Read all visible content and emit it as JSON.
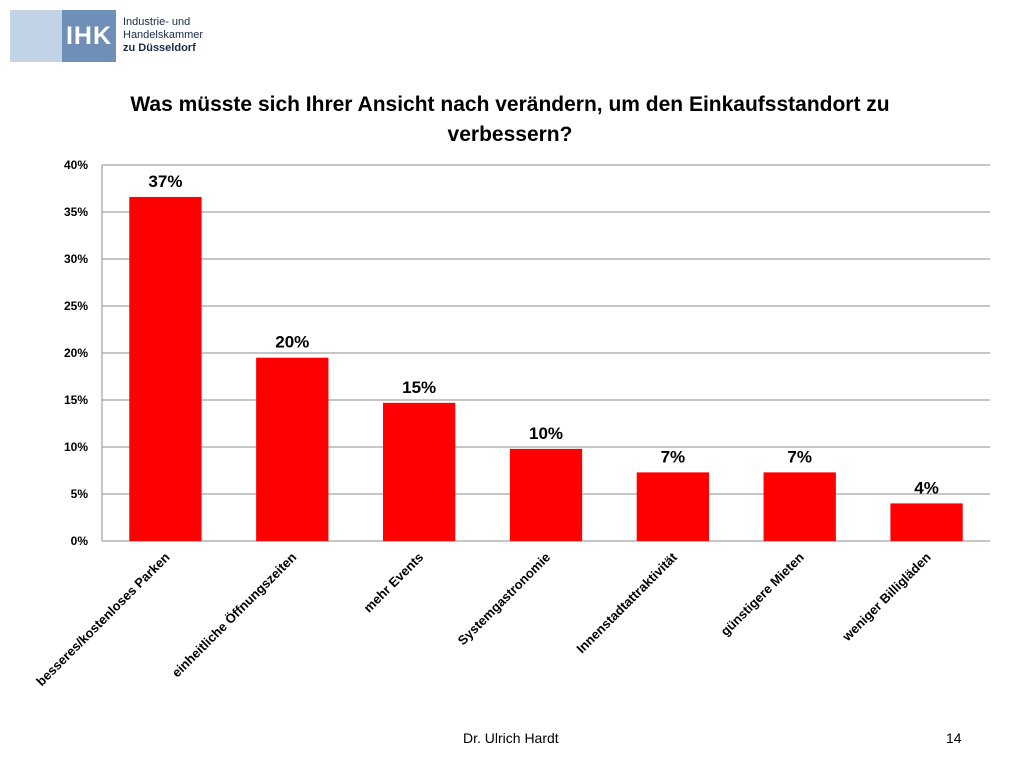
{
  "logo": {
    "mark": "IHK",
    "line1": "Industrie- und Handelskammer",
    "line2": "zu Düsseldorf"
  },
  "chart_data": {
    "type": "bar",
    "title": "Was müsste sich Ihrer Ansicht nach verändern, um den Einkaufsstandort zu verbessern?",
    "categories": [
      "besseres/kostenloses Parken",
      "einheitliche Öffnungszeiten",
      "mehr Events",
      "Systemgastronomie",
      "Innenstadtattraktivität",
      "günstigere Mieten",
      "weniger Billigläden"
    ],
    "values": [
      36.6,
      19.5,
      14.7,
      9.8,
      7.3,
      7.3,
      4.0
    ],
    "data_labels": [
      "37%",
      "20%",
      "15%",
      "10%",
      "7%",
      "7%",
      "4%"
    ],
    "ylim": [
      0,
      40
    ],
    "yticks": [
      "0%",
      "5%",
      "10%",
      "15%",
      "20%",
      "25%",
      "30%",
      "35%",
      "40%"
    ],
    "grid": true,
    "bar_color": "#ff0000",
    "grid_color": "#8c8c8c"
  },
  "footer": {
    "author": "Dr. Ulrich Hardt",
    "page": "14"
  }
}
